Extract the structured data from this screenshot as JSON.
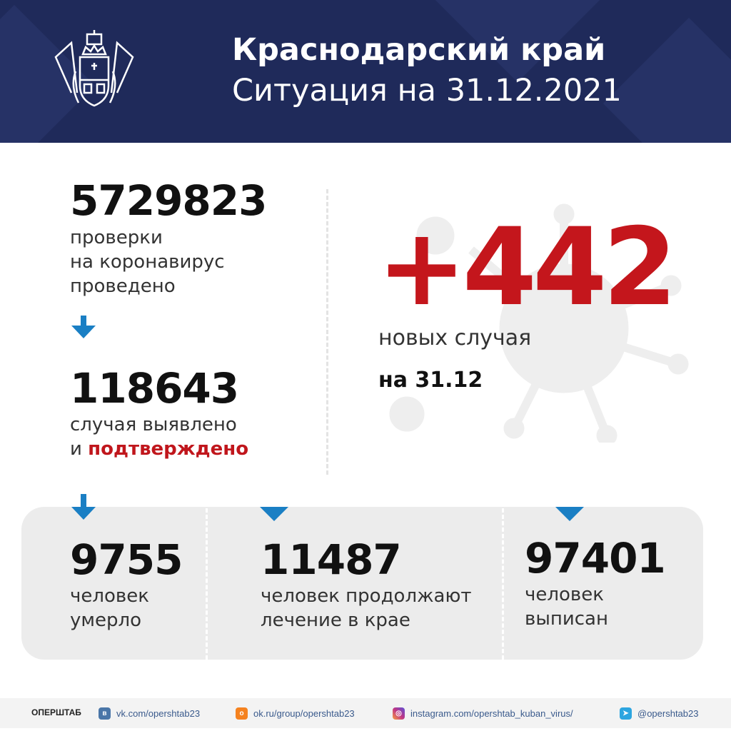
{
  "header": {
    "title": "Краснодарский край",
    "subtitle": "Ситуация на 31.12.2021"
  },
  "tests": {
    "value": "5729823",
    "label_lines": [
      "проверки",
      "на коронавирус",
      "проведено"
    ]
  },
  "cases": {
    "value": "118643",
    "label_line1": "случая выявлено",
    "label_line2_prefix": "и ",
    "label_line2_highlight": "подтверждено"
  },
  "new_cases": {
    "value": "+442",
    "label": "новых случая",
    "date": "на 31.12"
  },
  "stats": [
    {
      "value": "9755",
      "label_lines": [
        "человек",
        "умерло"
      ]
    },
    {
      "value": "11487",
      "label_lines": [
        "человек продолжают",
        "лечение в крае"
      ]
    },
    {
      "value": "97401",
      "label_lines": [
        "человек",
        "выписан"
      ]
    }
  ],
  "footer": {
    "brand": "ОПЕРШТАБ",
    "links": [
      {
        "icon": "vk-icon",
        "text": "vk.com/opershtab23",
        "color": "#4a76a8"
      },
      {
        "icon": "odnoklassniki-icon",
        "text": "ok.ru/group/opershtab23",
        "color": "#f5821f"
      },
      {
        "icon": "instagram-icon",
        "text": "instagram.com/opershtab_kuban_virus/",
        "color": "#c13584"
      },
      {
        "icon": "telegram-icon",
        "text": "@opershtab23",
        "color": "#2ca5e0"
      }
    ]
  },
  "colors": {
    "header_bg": "#1f2a5a",
    "accent_red": "#c4161c",
    "arrow_blue": "#1a7fc4"
  }
}
